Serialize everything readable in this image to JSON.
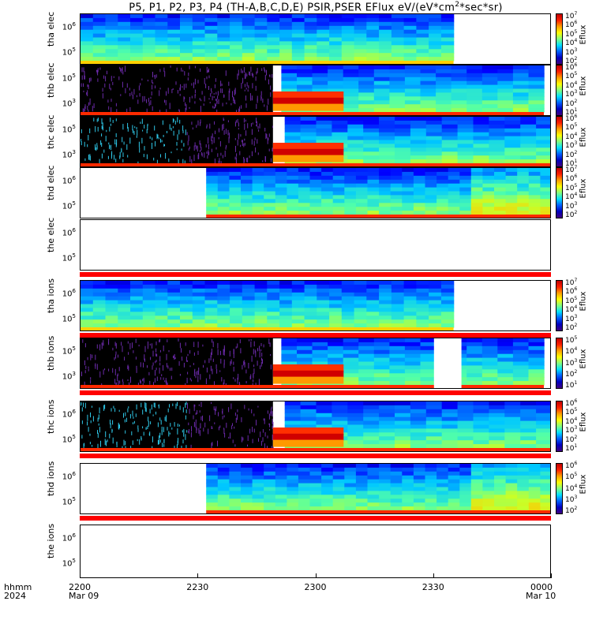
{
  "title_prefix": "P5, P1, P2, P3, P4 (TH-A,B,C,D,E) PSIR,PSER EFlux eV/(eV*cm",
  "title_sup": "2",
  "title_suffix": "*sec*sr)",
  "x_axis": {
    "label_line1": "hhmm",
    "label_line2": "2024",
    "ticks": [
      {
        "label": "2200",
        "date": "Mar 09"
      },
      {
        "label": "2230",
        "date": ""
      },
      {
        "label": "2300",
        "date": ""
      },
      {
        "label": "2330",
        "date": ""
      },
      {
        "label": "0000",
        "date": "Mar 10"
      }
    ]
  },
  "colorbar_label": "Eflux",
  "chart_data": {
    "type": "heatmap",
    "x_range": [
      "2024-03-09 22:00",
      "2024-03-10 00:00"
    ],
    "panels": [
      {
        "probe": "tha",
        "species": "elec",
        "ytick_exps": [
          "6",
          "5"
        ],
        "data_start": "22:00",
        "data_end": "23:35",
        "colorbar_exps": [
          "7",
          "6",
          "5",
          "4",
          "3",
          "2"
        ]
      },
      {
        "probe": "thb",
        "species": "elec",
        "ytick_exps": [
          "5",
          "3"
        ],
        "data_start": "22:00",
        "data_end": "23:58",
        "colorbar_exps": [
          "6",
          "5",
          "4",
          "3",
          "2",
          "1"
        ]
      },
      {
        "probe": "thc",
        "species": "elec",
        "ytick_exps": [
          "5",
          "3"
        ],
        "data_start": "22:00",
        "data_end": "24:00",
        "colorbar_exps": [
          "6",
          "5",
          "4",
          "3",
          "2",
          "1"
        ]
      },
      {
        "probe": "thd",
        "species": "elec",
        "ytick_exps": [
          "6",
          "5"
        ],
        "data_start": "22:32",
        "data_end": "24:00",
        "colorbar_exps": [
          "7",
          "6",
          "5",
          "4",
          "3",
          "2"
        ]
      },
      {
        "probe": "the",
        "species": "elec",
        "ytick_exps": [
          "6",
          "5"
        ],
        "data_start": "",
        "data_end": "",
        "colorbar_exps": []
      },
      {
        "probe": "tha",
        "species": "ions",
        "ytick_exps": [
          "6",
          "5"
        ],
        "data_start": "22:00",
        "data_end": "23:35",
        "colorbar_exps": [
          "7",
          "6",
          "5",
          "4",
          "3",
          "2"
        ]
      },
      {
        "probe": "thb",
        "species": "ions",
        "ytick_exps": [
          "5",
          "3"
        ],
        "data_start": "22:00",
        "data_end": "23:58",
        "colorbar_exps": [
          "5",
          "4",
          "3",
          "2",
          "1"
        ]
      },
      {
        "probe": "thc",
        "species": "ions",
        "ytick_exps": [
          "6",
          "5"
        ],
        "data_start": "22:00",
        "data_end": "24:00",
        "colorbar_exps": [
          "6",
          "5",
          "4",
          "3",
          "2",
          "1"
        ]
      },
      {
        "probe": "thd",
        "species": "ions",
        "ytick_exps": [
          "6",
          "5"
        ],
        "data_start": "22:32",
        "data_end": "24:00",
        "colorbar_exps": [
          "6",
          "5",
          "4",
          "3",
          "2"
        ]
      },
      {
        "probe": "the",
        "species": "ions",
        "ytick_exps": [
          "6",
          "5"
        ],
        "data_start": "",
        "data_end": "",
        "colorbar_exps": []
      }
    ]
  }
}
